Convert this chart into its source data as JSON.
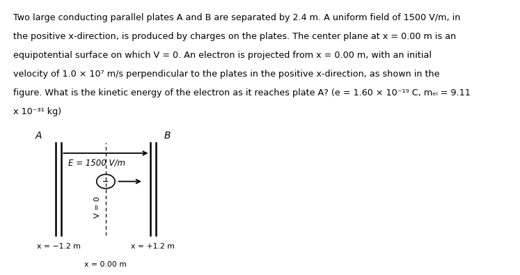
{
  "lines": [
    "Two large conducting parallel plates A and B are separated by 2.4 m. A uniform field of 1500 V/m, in",
    "the positive x-direction, is produced by charges on the plates. The center plane at x = 0.00 m is an",
    "equipotential surface on which V = 0. An electron is projected from x = 0.00 m, with an initial",
    "velocity of 1.0 × 10⁷ m/s perpendicular to the plates in the positive x-direction, as shown in the",
    "figure. What is the kinetic energy of the electron as it reaches plate A? (e = 1.60 × 10⁻¹⁹ C, mₑₗ = 9.11",
    "x 10⁻³¹ kg)"
  ],
  "label_A": "A",
  "label_B": "B",
  "label_E": "E = 1500 V/m",
  "label_V": "V = 0",
  "label_x_left": "x = −1.2 m",
  "label_x_right": "x = +1.2 m",
  "label_x_center": "x = 0.00 m",
  "bg_color": "#ffffff",
  "text_color": "#000000"
}
